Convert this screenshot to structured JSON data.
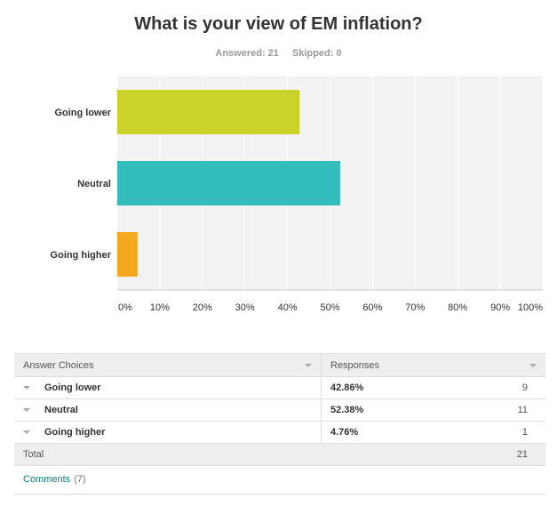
{
  "survey": {
    "title": "What is your view of EM inflation?",
    "answered": "Answered: 21",
    "skipped": "Skipped: 0"
  },
  "chart_data": {
    "type": "bar",
    "orientation": "horizontal",
    "categories": [
      "Going lower",
      "Neutral",
      "Going higher"
    ],
    "values": [
      42.86,
      52.38,
      4.76
    ],
    "colors": [
      "#cbd32a",
      "#33bcbc",
      "#f5a81d"
    ],
    "xlim": [
      0,
      100
    ],
    "xticks": [
      "0%",
      "10%",
      "20%",
      "30%",
      "40%",
      "50%",
      "60%",
      "70%",
      "80%",
      "90%",
      "100%"
    ],
    "grid": true,
    "background": "#f2f2f2"
  },
  "table": {
    "headers": [
      "Answer Choices",
      "Responses"
    ],
    "rows": [
      {
        "choice": "Going lower",
        "percent": "42.86%",
        "count": "9"
      },
      {
        "choice": "Neutral",
        "percent": "52.38%",
        "count": "11"
      },
      {
        "choice": "Going higher",
        "percent": "4.76%",
        "count": "1"
      }
    ],
    "total_label": "Total",
    "total_value": "21"
  },
  "comments": {
    "label": "Comments",
    "count": "(7)"
  }
}
